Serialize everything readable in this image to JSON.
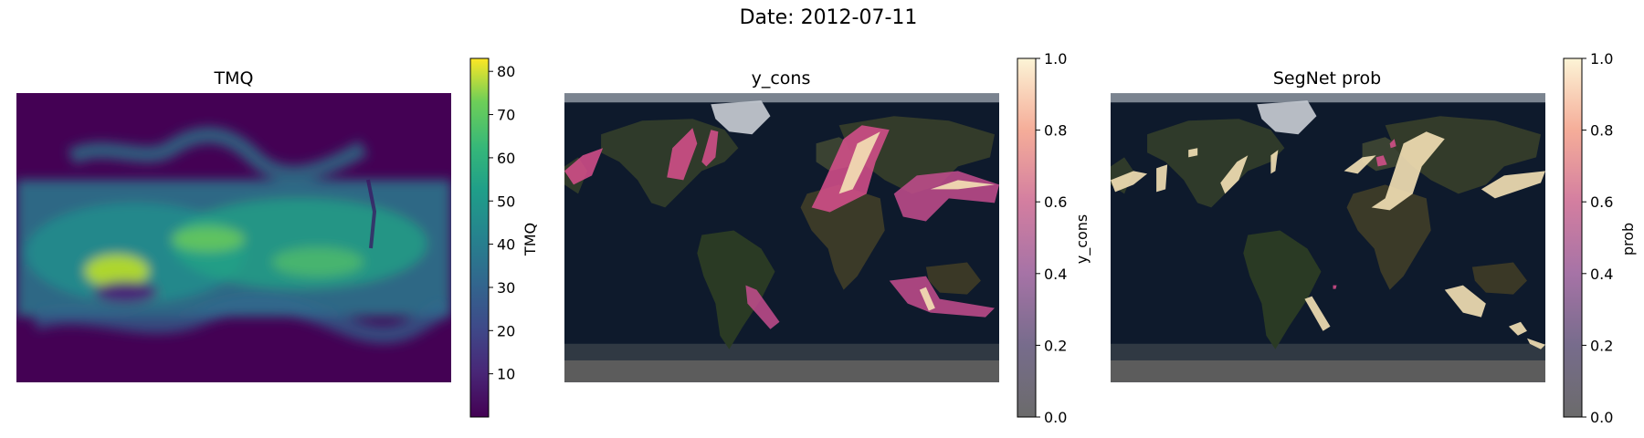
{
  "figure": {
    "title": "Date: 2012-07-11"
  },
  "panels": [
    {
      "id": "tmq",
      "title": "TMQ",
      "colorbar_label": "TMQ",
      "colormap": "viridis",
      "ticks": [
        "10",
        "20",
        "30",
        "40",
        "50",
        "60",
        "70",
        "80"
      ]
    },
    {
      "id": "ycons",
      "title": "y_cons",
      "colorbar_label": "y_cons",
      "colormap": "magma-like translucent",
      "ticks": [
        "0.0",
        "0.2",
        "0.4",
        "0.6",
        "0.8",
        "1.0"
      ]
    },
    {
      "id": "segnet",
      "title": "SegNet prob",
      "colorbar_label": "prob",
      "colormap": "magma-like translucent",
      "ticks": [
        "0.0",
        "0.2",
        "0.4",
        "0.6",
        "0.8",
        "1.0"
      ]
    }
  ],
  "chart_data": [
    {
      "type": "heatmap",
      "title": "TMQ",
      "colorbar_label": "TMQ",
      "colorbar_range": [
        0,
        83
      ],
      "colorbar_ticks": [
        10,
        20,
        30,
        40,
        50,
        60,
        70,
        80
      ]
    },
    {
      "type": "heatmap",
      "title": "y_cons",
      "colorbar_label": "y_cons",
      "colorbar_range": [
        0.0,
        1.0
      ],
      "colorbar_ticks": [
        0.0,
        0.2,
        0.4,
        0.6,
        0.8,
        1.0
      ]
    },
    {
      "type": "heatmap",
      "title": "SegNet prob",
      "colorbar_label": "prob",
      "colorbar_range": [
        0.0,
        1.0
      ],
      "colorbar_ticks": [
        0.0,
        0.2,
        0.4,
        0.6,
        0.8,
        1.0
      ]
    }
  ],
  "colors": {
    "background": "#ffffff",
    "ocean": "#0e1a2c",
    "land": "#2a3526",
    "ice": "#bfc5cc",
    "bottom_band": "#5c5c5c"
  }
}
